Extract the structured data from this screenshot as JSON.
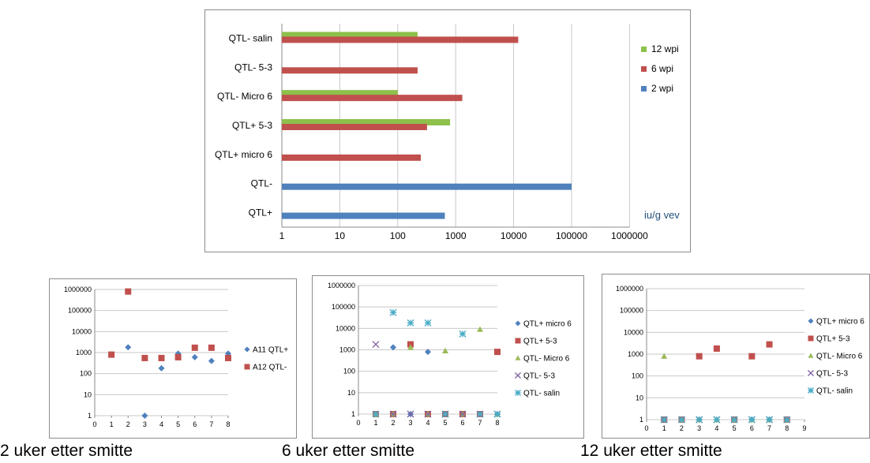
{
  "captions": [
    "2 uker etter smitte",
    "6 uker etter smitte",
    "12 uker etter smitte"
  ],
  "chart_data": [
    {
      "type": "bar",
      "orientation": "horizontal",
      "x_scale": "log",
      "xlim": [
        1,
        1000000
      ],
      "x_ticks": [
        "1",
        "10",
        "100",
        "1000",
        "10000",
        "100000",
        "1000000"
      ],
      "categories": [
        "QTL- salin",
        "QTL- 5-3",
        "QTL- Micro 6",
        "QTL+ 5-3",
        "QTL+ micro 6",
        "QTL-",
        "QTL+"
      ],
      "series": [
        {
          "name": "12 wpi",
          "color": "#8dc14b",
          "values": [
            220,
            null,
            100,
            800,
            null,
            null,
            null
          ]
        },
        {
          "name": "6 wpi",
          "color": "#c0504d",
          "values": [
            12000,
            220,
            1300,
            320,
            250,
            null,
            null
          ]
        },
        {
          "name": "2 wpi",
          "color": "#4f81bd",
          "values": [
            null,
            null,
            null,
            null,
            null,
            100000,
            650
          ]
        }
      ],
      "legend_order": [
        "12 wpi",
        "6 wpi",
        "2 wpi"
      ],
      "legend_position": "right",
      "annotation": "iu/g vev"
    },
    {
      "type": "scatter",
      "y_scale": "log",
      "xlim": [
        0,
        8
      ],
      "ylim": [
        1,
        1000000
      ],
      "x_ticks": [
        "0",
        "1",
        "2",
        "3",
        "4",
        "5",
        "6",
        "7",
        "8"
      ],
      "y_ticks": [
        "1",
        "10",
        "100",
        "1000",
        "10000",
        "100000",
        "1000000"
      ],
      "series": [
        {
          "name": "A11 QTL+",
          "marker": "diamond",
          "color": "#4f81bd",
          "points": [
            [
              1,
              800
            ],
            [
              2,
              1800
            ],
            [
              3,
              1
            ],
            [
              4,
              180
            ],
            [
              5,
              900
            ],
            [
              6,
              600
            ],
            [
              7,
              400
            ],
            [
              8,
              900
            ]
          ]
        },
        {
          "name": "A12 QTL-",
          "marker": "square",
          "color": "#c0504d",
          "points": [
            [
              1,
              800
            ],
            [
              2,
              800000
            ],
            [
              3,
              550
            ],
            [
              4,
              550
            ],
            [
              5,
              600
            ],
            [
              6,
              1700
            ],
            [
              7,
              1700
            ],
            [
              8,
              550
            ]
          ]
        }
      ],
      "legend_position": "right"
    },
    {
      "type": "scatter",
      "y_scale": "log",
      "xlim": [
        0,
        8
      ],
      "ylim": [
        1,
        1000000
      ],
      "x_ticks": [
        "0",
        "1",
        "2",
        "3",
        "4",
        "5",
        "6",
        "7",
        "8"
      ],
      "y_ticks": [
        "1",
        "10",
        "100",
        "1000",
        "10000",
        "100000",
        "1000000"
      ],
      "series": [
        {
          "name": "QTL+ micro 6",
          "marker": "diamond",
          "color": "#4f81bd",
          "points": [
            [
              1,
              1
            ],
            [
              2,
              1300
            ],
            [
              3,
              1
            ],
            [
              4,
              800
            ],
            [
              5,
              1
            ],
            [
              6,
              1
            ],
            [
              7,
              1
            ],
            [
              8,
              1
            ]
          ]
        },
        {
          "name": "QTL+  5-3",
          "marker": "square",
          "color": "#c0504d",
          "points": [
            [
              1,
              1
            ],
            [
              2,
              1
            ],
            [
              3,
              1800
            ],
            [
              4,
              1
            ],
            [
              5,
              1
            ],
            [
              6,
              1
            ],
            [
              7,
              1
            ],
            [
              8,
              800
            ]
          ]
        },
        {
          "name": "QTL- Micro 6",
          "marker": "triangle",
          "color": "#9bbb59",
          "points": [
            [
              1,
              1
            ],
            [
              2,
              1
            ],
            [
              3,
              1300
            ],
            [
              4,
              1
            ],
            [
              5,
              900
            ],
            [
              6,
              1
            ],
            [
              7,
              9000
            ],
            [
              8,
              1
            ]
          ]
        },
        {
          "name": "QTL- 5-3",
          "marker": "x",
          "color": "#8064a2",
          "points": [
            [
              1,
              1800
            ],
            [
              2,
              1
            ],
            [
              3,
              1
            ],
            [
              4,
              1
            ],
            [
              5,
              1
            ],
            [
              6,
              1
            ],
            [
              7,
              1
            ],
            [
              8,
              1
            ]
          ]
        },
        {
          "name": "QTL- salin",
          "marker": "star",
          "color": "#4bacc6",
          "points": [
            [
              1,
              1
            ],
            [
              2,
              55000
            ],
            [
              3,
              18000
            ],
            [
              4,
              18000
            ],
            [
              5,
              1
            ],
            [
              6,
              5500
            ],
            [
              7,
              1
            ],
            [
              8,
              1
            ]
          ]
        }
      ],
      "legend_position": "right"
    },
    {
      "type": "scatter",
      "y_scale": "log",
      "xlim": [
        0,
        9
      ],
      "ylim": [
        1,
        1000000
      ],
      "x_ticks": [
        "0",
        "1",
        "2",
        "3",
        "4",
        "5",
        "6",
        "7",
        "8",
        "9"
      ],
      "y_ticks": [
        "1",
        "10",
        "100",
        "1000",
        "10000",
        "100000",
        "1000000"
      ],
      "series": [
        {
          "name": "QTL+ micro 6",
          "marker": "diamond",
          "color": "#4f81bd",
          "points": [
            [
              1,
              1
            ],
            [
              2,
              1
            ],
            [
              3,
              1
            ],
            [
              4,
              1800
            ],
            [
              5,
              1
            ],
            [
              6,
              1
            ],
            [
              7,
              1
            ],
            [
              8,
              1
            ]
          ]
        },
        {
          "name": "QTL+  5-3",
          "marker": "square",
          "color": "#c0504d",
          "points": [
            [
              1,
              1
            ],
            [
              2,
              1
            ],
            [
              3,
              800
            ],
            [
              4,
              1800
            ],
            [
              5,
              1
            ],
            [
              6,
              800
            ],
            [
              7,
              2800
            ],
            [
              8,
              1
            ]
          ]
        },
        {
          "name": "QTL- Micro 6",
          "marker": "triangle",
          "color": "#9bbb59",
          "points": [
            [
              1,
              800
            ],
            [
              2,
              1
            ],
            [
              3,
              1
            ],
            [
              4,
              1
            ],
            [
              5,
              1
            ],
            [
              6,
              1
            ],
            [
              7,
              1
            ],
            [
              8,
              1
            ]
          ]
        },
        {
          "name": "QTL- 5-3",
          "marker": "x",
          "color": "#8064a2",
          "points": [
            [
              1,
              1
            ],
            [
              2,
              1
            ],
            [
              3,
              1
            ],
            [
              4,
              1
            ],
            [
              5,
              1
            ],
            [
              6,
              1
            ],
            [
              7,
              1
            ],
            [
              8,
              1
            ]
          ]
        },
        {
          "name": "QTL- salin",
          "marker": "star",
          "color": "#4bacc6",
          "points": [
            [
              1,
              1
            ],
            [
              2,
              1
            ],
            [
              3,
              1
            ],
            [
              4,
              1
            ],
            [
              5,
              1
            ],
            [
              6,
              1
            ],
            [
              7,
              1
            ],
            [
              8,
              1
            ]
          ]
        }
      ],
      "legend_position": "right"
    }
  ]
}
